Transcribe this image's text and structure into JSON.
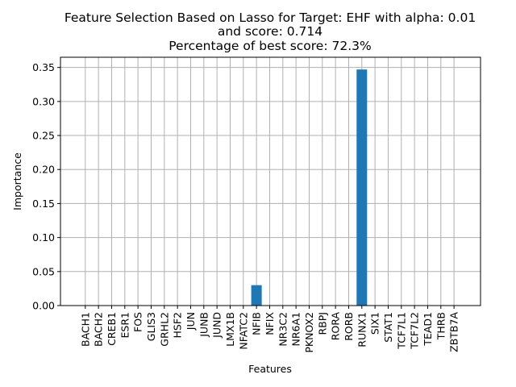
{
  "chart_data": {
    "type": "bar",
    "title_lines": [
      "Feature Selection Based on Lasso for Target: EHF with alpha: 0.01",
      "and score: 0.714",
      "Percentage of best score: 72.3%"
    ],
    "xlabel": "Features",
    "ylabel": "Importance",
    "categories": [
      "BACH1",
      "BACH2",
      "CREB1",
      "ESR1",
      "FOS",
      "GLIS3",
      "GRHL2",
      "HSF2",
      "JUN",
      "JUNB",
      "JUND",
      "LMX1B",
      "NFATC2",
      "NFIB",
      "NFIX",
      "NR3C2",
      "NR6A1",
      "PKNOX2",
      "RBPJ",
      "RORA",
      "RORB",
      "RUNX1",
      "SIX1",
      "STAT1",
      "TCF7L1",
      "TCF7L2",
      "TEAD1",
      "THRB",
      "ZBTB7A"
    ],
    "values": [
      0,
      0,
      0,
      0,
      0,
      0,
      0,
      0,
      0,
      0,
      0,
      0,
      0,
      0.03,
      0,
      0,
      0,
      0,
      0,
      0,
      0,
      0.347,
      0,
      0,
      0,
      0,
      0,
      0,
      0
    ],
    "ylim": [
      0,
      0.365
    ],
    "yticks": [
      "0.00",
      "0.05",
      "0.10",
      "0.15",
      "0.20",
      "0.25",
      "0.30",
      "0.35"
    ],
    "grid": true,
    "bar_color": "#1f77b4",
    "grid_color": "#b0b0b0"
  }
}
